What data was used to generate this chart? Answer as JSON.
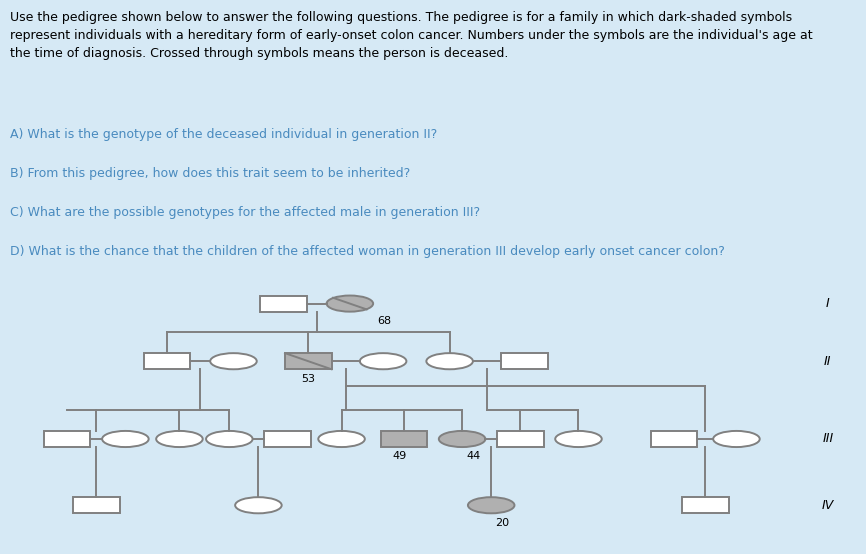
{
  "bg_color": "#d6e9f5",
  "pedigree_bg": "#ffffff",
  "text_color": "#4a8bbf",
  "header_text": "Use the pedigree shown below to answer the following questions. The pedigree is for a family in which dark-shaded symbols\nrepresent individuals with a hereditary form of early-onset colon cancer. Numbers under the symbols are the individual's age at\nthe time of diagnosis. Crossed through symbols means the person is deceased.",
  "questions": [
    "A) What is the genotype of the deceased individual in generation II?",
    "B) From this pedigree, how does this trait seem to be inherited?",
    "C) What are the possible genotypes for the affected male in generation III?",
    "D) What is the chance that the children of the affected woman in generation III develop early onset cancer colon?"
  ],
  "gen_labels": [
    "I",
    "II",
    "III",
    "IV"
  ],
  "affected_color": "#b0b0b0",
  "unaffected_color": "#ffffff",
  "line_color": "#808080",
  "border_color": "#808080",
  "text_fontsize": 9.0,
  "question_fontsize": 9.0
}
